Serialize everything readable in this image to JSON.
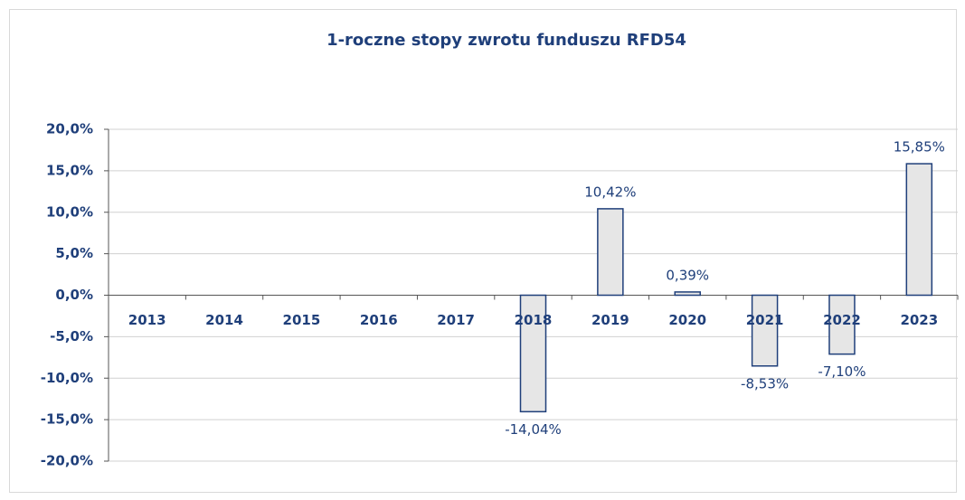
{
  "chart_data": {
    "type": "bar",
    "title": "1-roczne stopy zwrotu funduszu RFD54",
    "categories": [
      "2013",
      "2014",
      "2015",
      "2016",
      "2017",
      "2018",
      "2019",
      "2020",
      "2021",
      "2022",
      "2023"
    ],
    "values": [
      null,
      null,
      null,
      null,
      null,
      -14.04,
      10.42,
      0.39,
      -8.53,
      -7.1,
      15.85
    ],
    "value_labels": [
      null,
      null,
      null,
      null,
      null,
      "-14,04%",
      "10,42%",
      "0,39%",
      "-8,53%",
      "-7,10%",
      "15,85%"
    ],
    "color": "#e6e6e6",
    "edge_color": "#1f3f7a",
    "ylim": [
      -20,
      20
    ],
    "yticks": [
      {
        "value": -20,
        "label": "-20,0%"
      },
      {
        "value": -15,
        "label": "-15,0%"
      },
      {
        "value": -10,
        "label": "-10,0%"
      },
      {
        "value": -5,
        "label": "-5,0%"
      },
      {
        "value": 0,
        "label": "0,0%"
      },
      {
        "value": 5,
        "label": "5,0%"
      },
      {
        "value": 10,
        "label": "10,0%"
      },
      {
        "value": 15,
        "label": "15,0%"
      },
      {
        "value": 20,
        "label": "20,0%"
      }
    ],
    "grid": true
  }
}
